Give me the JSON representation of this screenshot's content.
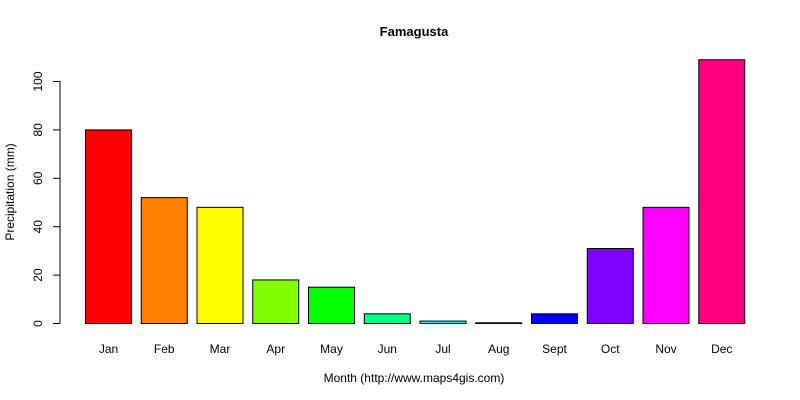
{
  "chart_data": {
    "type": "bar",
    "title": "Famagusta",
    "xlabel": "Month (http://www.maps4gis.com)",
    "ylabel": "Precipitation (mm)",
    "categories": [
      "Jan",
      "Feb",
      "Mar",
      "Apr",
      "May",
      "Jun",
      "Jul",
      "Aug",
      "Sept",
      "Oct",
      "Nov",
      "Dec"
    ],
    "values": [
      80,
      52,
      48,
      18,
      15,
      4,
      1,
      0.3,
      4,
      31,
      48,
      109
    ],
    "colors": [
      "#FF0000",
      "#FF8000",
      "#FFFF00",
      "#80FF00",
      "#00FF00",
      "#00FF80",
      "#00FFFF",
      "#0080FF",
      "#0000FF",
      "#8000FF",
      "#FF00FF",
      "#FF0080"
    ],
    "yticks": [
      0,
      20,
      40,
      60,
      80,
      100
    ],
    "ylim": [
      0,
      109
    ],
    "grid": false,
    "legend": "none"
  }
}
